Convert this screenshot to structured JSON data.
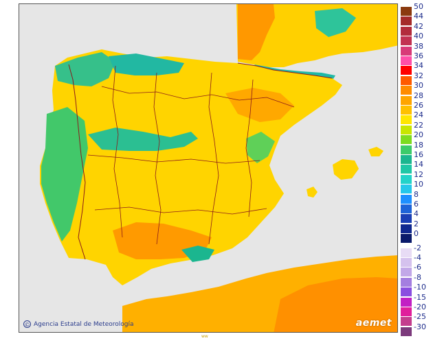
{
  "map": {
    "credit_text": "Agencia Estatal de Meteorología",
    "logo_text": "aemet",
    "bottom_mark": "ww",
    "sea_color": "#e6e6e6",
    "border_color": "#8b1a1a",
    "land_dominant_color": "#ffd400",
    "hot_color": "#ff9c00",
    "cool_color": "#1fc7a6"
  },
  "legend": {
    "entries": [
      {
        "label": "50",
        "color": "#8b3a0f"
      },
      {
        "label": "44",
        "color": "#a52a2a"
      },
      {
        "label": "42",
        "color": "#b22b3c"
      },
      {
        "label": "40",
        "color": "#c23151"
      },
      {
        "label": "38",
        "color": "#d83a78"
      },
      {
        "label": "36",
        "color": "#ff4fa8"
      },
      {
        "label": "34",
        "color": "#ff0000"
      },
      {
        "label": "32",
        "color": "#ff5a00"
      },
      {
        "label": "30",
        "color": "#ff8c00"
      },
      {
        "label": "28",
        "color": "#ffa500"
      },
      {
        "label": "26",
        "color": "#ffc000"
      },
      {
        "label": "24",
        "color": "#ffe600"
      },
      {
        "label": "22",
        "color": "#c8e600"
      },
      {
        "label": "20",
        "color": "#7ddc1f"
      },
      {
        "label": "18",
        "color": "#3ccb6a"
      },
      {
        "label": "16",
        "color": "#1bb68f"
      },
      {
        "label": "14",
        "color": "#1fc7a6"
      },
      {
        "label": "12",
        "color": "#22d3c9"
      },
      {
        "label": "10",
        "color": "#26c8ea"
      },
      {
        "label": "8",
        "color": "#1e90ff"
      },
      {
        "label": "6",
        "color": "#1e64d8"
      },
      {
        "label": "4",
        "color": "#1a3fb5"
      },
      {
        "label": "2",
        "color": "#102890"
      },
      {
        "label": "0",
        "color": "#0a1a6b"
      },
      {
        "label": "-2",
        "color": "#e8dcf5"
      },
      {
        "label": "-4",
        "color": "#d5c2ee"
      },
      {
        "label": "-6",
        "color": "#c2a8e8"
      },
      {
        "label": "-8",
        "color": "#a47ee0"
      },
      {
        "label": "-10",
        "color": "#8a4ee0"
      },
      {
        "label": "-15",
        "color": "#c21fc4"
      },
      {
        "label": "-20",
        "color": "#e01e9c"
      },
      {
        "label": "-25",
        "color": "#c43d8e"
      },
      {
        "label": "-30",
        "color": "#7c3a7c"
      }
    ]
  }
}
